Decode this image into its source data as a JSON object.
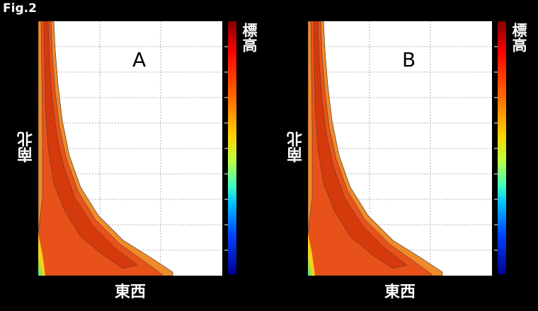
{
  "figure_label": "Fig.2",
  "panels": [
    {
      "letter": "A",
      "x_label": "東西",
      "y_label": "南北",
      "colorbar_label": "標高"
    },
    {
      "letter": "B",
      "x_label": "東西",
      "y_label": "南北",
      "colorbar_label": "標高"
    }
  ],
  "colors": {
    "background": "#000000",
    "dark_red": "#d43a0c",
    "red_orange": "#e8521a",
    "orange": "#f08a2a",
    "yellow": "#f5d020",
    "green": "#9be040",
    "cyan": "#40e0c0"
  },
  "colorbar_scale": "jet"
}
